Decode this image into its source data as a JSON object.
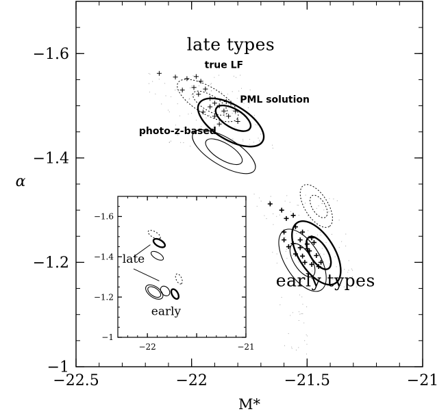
{
  "chart_data": [
    {
      "type": "scatter",
      "role": "main",
      "xlabel": "M*",
      "ylabel": "α",
      "xlim": [
        -22.5,
        -21.0
      ],
      "ylim": [
        -1.0,
        -1.7
      ],
      "x_ticks": [
        {
          "value": -22.5,
          "label": "−22.5"
        },
        {
          "value": -22.0,
          "label": "−22"
        },
        {
          "value": -21.5,
          "label": "−21.5"
        },
        {
          "value": -21.0,
          "label": "−21"
        }
      ],
      "y_ticks": [
        {
          "value": -1.0,
          "label": "−1"
        },
        {
          "value": -1.2,
          "label": "−1.2"
        },
        {
          "value": -1.4,
          "label": "−1.4"
        },
        {
          "value": -1.6,
          "label": "−1.6"
        }
      ],
      "x_minor_step": 0.1,
      "y_minor_step": 0.05,
      "annotations": [
        {
          "text": "late types",
          "x": -21.83,
          "y": -1.606,
          "style": "large"
        },
        {
          "text": "true LF",
          "x": -21.86,
          "y": -1.572,
          "style": "bold"
        },
        {
          "text": "PML solution",
          "x": -21.64,
          "y": -1.506,
          "style": "bold"
        },
        {
          "text": "photo-z-based",
          "x": -22.06,
          "y": -1.446,
          "style": "bold"
        },
        {
          "text": "early types",
          "x": -21.42,
          "y": -1.154,
          "style": "large"
        }
      ],
      "contours": [
        {
          "group": "late",
          "kind": "true LF",
          "line": "dotted",
          "cx": -21.92,
          "cy": -1.505,
          "a": 0.085,
          "b": 0.033,
          "angle": 31
        },
        {
          "group": "late",
          "kind": "true LF",
          "line": "dotted",
          "cx": -21.93,
          "cy": -1.51,
          "a": 0.15,
          "b": 0.058,
          "angle": 31
        },
        {
          "group": "late",
          "kind": "PML solution",
          "line": "thick",
          "cx": -21.82,
          "cy": -1.476,
          "a": 0.085,
          "b": 0.04,
          "angle": 31
        },
        {
          "group": "late",
          "kind": "PML solution",
          "line": "thick",
          "cx": -21.83,
          "cy": -1.468,
          "a": 0.16,
          "b": 0.075,
          "angle": 31
        },
        {
          "group": "late",
          "kind": "photo-z-based",
          "line": "thin",
          "cx": -21.86,
          "cy": -1.412,
          "a": 0.09,
          "b": 0.036,
          "angle": 31
        },
        {
          "group": "late",
          "kind": "photo-z-based",
          "line": "thin",
          "cx": -21.86,
          "cy": -1.412,
          "a": 0.155,
          "b": 0.06,
          "angle": 31
        },
        {
          "group": "early",
          "kind": "true LF",
          "line": "dotted",
          "cx": -21.45,
          "cy": -1.307,
          "a": 0.055,
          "b": 0.028,
          "angle": 58
        },
        {
          "group": "early",
          "kind": "true LF",
          "line": "dotted",
          "cx": -21.46,
          "cy": -1.308,
          "a": 0.105,
          "b": 0.05,
          "angle": 58
        },
        {
          "group": "early",
          "kind": "PML solution",
          "line": "thick",
          "cx": -21.45,
          "cy": -1.218,
          "a": 0.08,
          "b": 0.038,
          "angle": 58
        },
        {
          "group": "early",
          "kind": "PML solution",
          "line": "thick",
          "cx": -21.46,
          "cy": -1.218,
          "a": 0.155,
          "b": 0.078,
          "angle": 58
        },
        {
          "group": "early",
          "kind": "photo-z-based",
          "line": "thin",
          "cx": -21.52,
          "cy": -1.204,
          "a": 0.082,
          "b": 0.038,
          "angle": 58
        },
        {
          "group": "early",
          "kind": "photo-z-based",
          "line": "thin",
          "cx": -21.52,
          "cy": -1.204,
          "a": 0.152,
          "b": 0.075,
          "angle": 58
        }
      ],
      "late_points": [
        [
          -22.14,
          -1.562
        ],
        [
          -22.07,
          -1.555
        ],
        [
          -22.02,
          -1.552
        ],
        [
          -21.98,
          -1.556
        ],
        [
          -21.96,
          -1.547
        ],
        [
          -21.99,
          -1.535
        ],
        [
          -22.04,
          -1.53
        ],
        [
          -21.94,
          -1.532
        ],
        [
          -21.97,
          -1.522
        ],
        [
          -21.92,
          -1.514
        ],
        [
          -21.9,
          -1.505
        ],
        [
          -21.88,
          -1.5
        ],
        [
          -21.85,
          -1.508
        ],
        [
          -21.83,
          -1.505
        ],
        [
          -21.86,
          -1.49
        ],
        [
          -21.84,
          -1.48
        ],
        [
          -21.81,
          -1.49
        ],
        [
          -21.8,
          -1.47
        ],
        [
          -21.95,
          -1.488
        ],
        [
          -21.9,
          -1.48
        ],
        [
          -21.88,
          -1.465
        ],
        [
          -21.92,
          -1.498
        ]
      ],
      "early_points": [
        [
          -21.66,
          -1.312
        ],
        [
          -21.61,
          -1.3
        ],
        [
          -21.59,
          -1.284
        ],
        [
          -21.56,
          -1.29
        ],
        [
          -21.55,
          -1.268
        ],
        [
          -21.6,
          -1.258
        ],
        [
          -21.52,
          -1.258
        ],
        [
          -21.5,
          -1.235
        ],
        [
          -21.56,
          -1.236
        ],
        [
          -21.53,
          -1.228
        ],
        [
          -21.55,
          -1.216
        ],
        [
          -21.52,
          -1.212
        ],
        [
          -21.49,
          -1.222
        ],
        [
          -21.47,
          -1.238
        ],
        [
          -21.51,
          -1.2
        ],
        [
          -21.48,
          -1.196
        ],
        [
          -21.46,
          -1.213
        ],
        [
          -21.45,
          -1.192
        ],
        [
          -21.5,
          -1.226
        ],
        [
          -21.53,
          -1.243
        ],
        [
          -21.58,
          -1.23
        ],
        [
          -21.6,
          -1.243
        ],
        [
          -21.48,
          -1.247
        ],
        [
          -21.44,
          -1.2
        ]
      ]
    },
    {
      "type": "scatter",
      "role": "inset",
      "xlim": [
        -22.3,
        -21.0
      ],
      "ylim": [
        -1.0,
        -1.7
      ],
      "x_ticks": [
        {
          "value": -22.0,
          "label": "−22"
        },
        {
          "value": -21.5,
          "label": ""
        },
        {
          "value": -21.0,
          "label": "−21"
        }
      ],
      "y_ticks": [
        {
          "value": -1.0,
          "label": "−1"
        },
        {
          "value": -1.2,
          "label": "−1.2"
        },
        {
          "value": -1.4,
          "label": "−1.4"
        },
        {
          "value": -1.6,
          "label": "−1.6"
        }
      ],
      "x_minor_step": 0.1,
      "y_minor_step": 0.05,
      "annotations": [
        {
          "text": "late",
          "x": -22.14,
          "y": -1.37
        },
        {
          "text": "early",
          "x": -21.81,
          "y": -1.11
        }
      ],
      "leader_lines": [
        {
          "from": [
            -22.14,
            -1.4
          ],
          "to": [
            -21.97,
            -1.46
          ]
        },
        {
          "from": [
            -22.14,
            -1.34
          ],
          "to": [
            -21.88,
            -1.28
          ]
        }
      ],
      "contours": [
        {
          "line": "dotted",
          "cx": -21.93,
          "cy": -1.51,
          "a": 0.07,
          "b": 0.03,
          "angle": 30
        },
        {
          "line": "thick",
          "cx": -21.88,
          "cy": -1.468,
          "a": 0.065,
          "b": 0.033,
          "angle": 30
        },
        {
          "line": "thin",
          "cx": -21.9,
          "cy": -1.405,
          "a": 0.07,
          "b": 0.032,
          "angle": 30
        },
        {
          "line": "dotted",
          "cx": -21.68,
          "cy": -1.29,
          "a": 0.055,
          "b": 0.028,
          "angle": 65
        },
        {
          "line": "thin",
          "cx": -21.93,
          "cy": -1.225,
          "a": 0.075,
          "b": 0.04,
          "angle": 35
        },
        {
          "line": "thin",
          "cx": -21.93,
          "cy": -1.225,
          "a": 0.1,
          "b": 0.055,
          "angle": 35
        },
        {
          "line": "thick",
          "cx": -21.72,
          "cy": -1.215,
          "a": 0.055,
          "b": 0.03,
          "angle": 60
        },
        {
          "line": "thin",
          "cx": -21.82,
          "cy": -1.23,
          "a": 0.055,
          "b": 0.04,
          "angle": 50
        }
      ]
    }
  ]
}
